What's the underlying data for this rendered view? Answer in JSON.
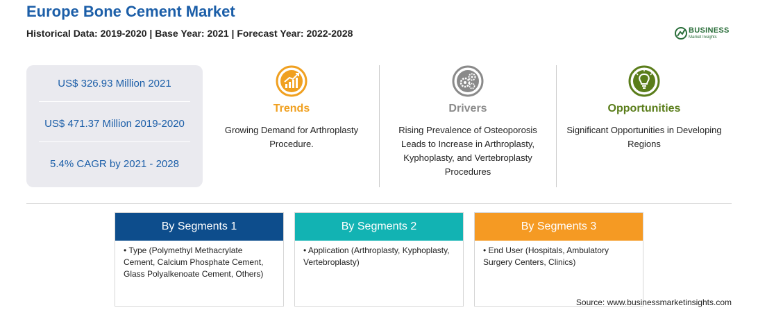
{
  "header": {
    "title": "Europe Bone Cement Market",
    "subtitle": "Historical Data: 2019-2020 | Base Year: 2021 | Forecast Year: 2022-2028"
  },
  "logo": {
    "word": "BUSINESS",
    "sub": "Market Insights"
  },
  "stats": [
    "US$ 326.93 Million 2021",
    "US$ 471.37 Million 2019-2020",
    "5.4% CAGR by 2021 - 2028"
  ],
  "columns": {
    "trends": {
      "title": "Trends",
      "text": "Growing Demand for Arthroplasty Procedure.",
      "icon": "trend-chart-icon",
      "color": "#f0a020"
    },
    "drivers": {
      "title": "Drivers",
      "text": "Rising Prevalence of Osteoporosis Leads to Increase in Arthroplasty, Kyphoplasty, and Vertebroplasty Procedures",
      "icon": "gears-icon",
      "color": "#8a8a8a"
    },
    "opportunities": {
      "title": "Opportunities",
      "text": "Significant Opportunities in Developing Regions",
      "icon": "lightbulb-icon",
      "color": "#5a7d1a"
    }
  },
  "segments": [
    {
      "title": "By Segments 1",
      "color": "#0d4d8c",
      "text": "• Type (Polymethyl Methacrylate Cement, Calcium Phosphate Cement, Glass Polyalkenoate Cement, Others)"
    },
    {
      "title": "By Segments 2",
      "color": "#12b3b3",
      "text": "• Application (Arthroplasty, Kyphoplasty, Vertebroplasty)"
    },
    {
      "title": "By Segments 3",
      "color": "#f59a23",
      "text": "• End User (Hospitals, Ambulatory Surgery Centers, Clinics)"
    }
  ],
  "source": "Source: www.businessmarketinsights.com"
}
